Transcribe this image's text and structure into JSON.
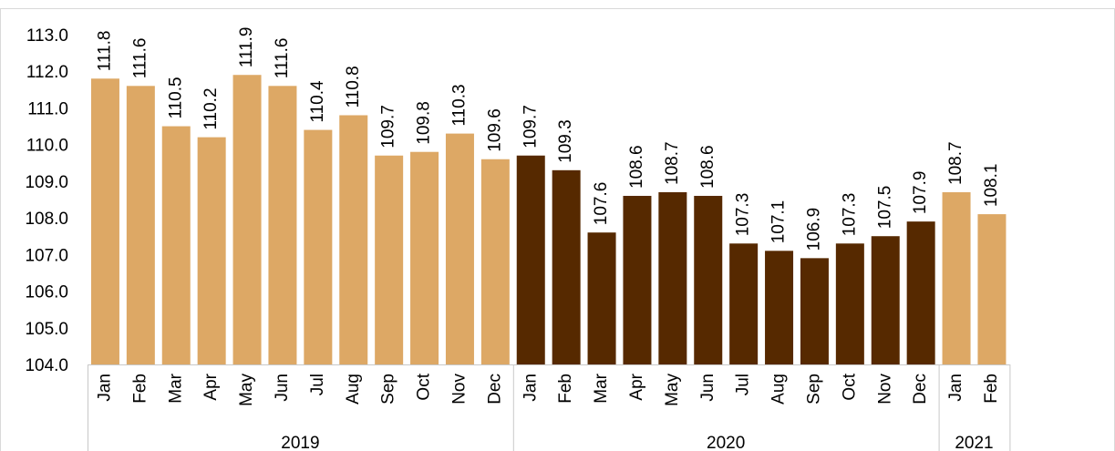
{
  "chart_data": {
    "type": "bar",
    "title": "",
    "xlabel": "",
    "ylabel": "",
    "ylim": [
      104.0,
      113.0
    ],
    "yticks": [
      "104.0",
      "105.0",
      "106.0",
      "107.0",
      "108.0",
      "109.0",
      "110.0",
      "111.0",
      "112.0",
      "113.0"
    ],
    "grid": false,
    "legend": "none",
    "colors": {
      "light": "#DDA865",
      "dark": "#562900",
      "axis": "#C8C8C8",
      "frame": "#D9D9D9"
    },
    "groups": [
      {
        "label": "2019",
        "shade": "light",
        "count": 12
      },
      {
        "label": "2020",
        "shade": "dark",
        "count": 12
      },
      {
        "label": "2021",
        "shade": "light",
        "count": 2
      }
    ],
    "categories": [
      "Jan",
      "Feb",
      "Mar",
      "Apr",
      "May",
      "Jun",
      "Jul",
      "Aug",
      "Sep",
      "Oct",
      "Nov",
      "Dec",
      "Jan",
      "Feb",
      "Mar",
      "Apr",
      "May",
      "Jun",
      "Jul",
      "Aug",
      "Sep",
      "Oct",
      "Nov",
      "Dec",
      "Jan",
      "Feb"
    ],
    "values": [
      111.8,
      111.6,
      110.5,
      110.2,
      111.9,
      111.6,
      110.4,
      110.8,
      109.7,
      109.8,
      110.3,
      109.6,
      109.7,
      109.3,
      107.6,
      108.6,
      108.7,
      108.6,
      107.3,
      107.1,
      106.9,
      107.3,
      107.5,
      107.9,
      108.7,
      108.1
    ],
    "data_labels": [
      "111.8",
      "111.6",
      "110.5",
      "110.2",
      "111.9",
      "111.6",
      "110.4",
      "110.8",
      "109.7",
      "109.8",
      "110.3",
      "109.6",
      "109.7",
      "109.3",
      "107.6",
      "108.6",
      "108.7",
      "108.6",
      "107.3",
      "107.1",
      "106.9",
      "107.3",
      "107.5",
      "107.9",
      "108.7",
      "108.1"
    ]
  }
}
